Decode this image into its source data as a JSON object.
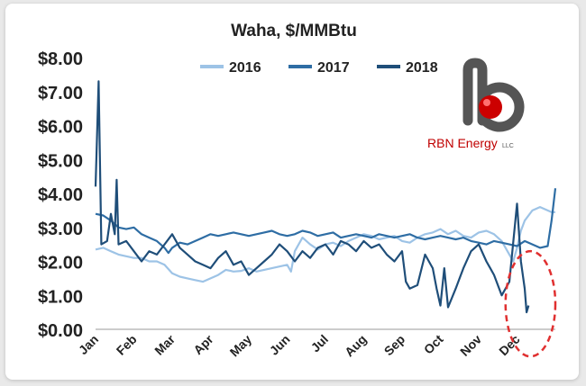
{
  "chart_data": {
    "type": "line",
    "title": "Waha, $/MMBtu",
    "xlabel": "",
    "ylabel": "",
    "ylim": [
      0,
      8
    ],
    "yticks": [
      "$0.00",
      "$1.00",
      "$2.00",
      "$3.00",
      "$4.00",
      "$5.00",
      "$6.00",
      "$7.00",
      "$8.00"
    ],
    "xticks": [
      "Jan",
      "Feb",
      "Mar",
      "Apr",
      "May",
      "Jun",
      "Jul",
      "Aug",
      "Sep",
      "Oct",
      "Nov",
      "Dec"
    ],
    "grid": false,
    "legend_position": "top",
    "series": [
      {
        "name": "2016",
        "color": "#9dc3e6",
        "points": [
          [
            0,
            2.35
          ],
          [
            0.2,
            2.4
          ],
          [
            0.4,
            2.3
          ],
          [
            0.6,
            2.2
          ],
          [
            0.8,
            2.15
          ],
          [
            1.0,
            2.1
          ],
          [
            1.2,
            2.1
          ],
          [
            1.4,
            2.0
          ],
          [
            1.6,
            2.0
          ],
          [
            1.8,
            1.9
          ],
          [
            2.0,
            1.65
          ],
          [
            2.2,
            1.55
          ],
          [
            2.4,
            1.5
          ],
          [
            2.6,
            1.45
          ],
          [
            2.8,
            1.4
          ],
          [
            3.0,
            1.5
          ],
          [
            3.2,
            1.6
          ],
          [
            3.4,
            1.75
          ],
          [
            3.6,
            1.7
          ],
          [
            3.8,
            1.72
          ],
          [
            4.0,
            1.8
          ],
          [
            4.2,
            1.7
          ],
          [
            4.4,
            1.75
          ],
          [
            4.6,
            1.8
          ],
          [
            4.8,
            1.85
          ],
          [
            5.0,
            1.9
          ],
          [
            5.1,
            1.7
          ],
          [
            5.2,
            2.3
          ],
          [
            5.4,
            2.7
          ],
          [
            5.6,
            2.5
          ],
          [
            5.8,
            2.35
          ],
          [
            6.0,
            2.5
          ],
          [
            6.2,
            2.55
          ],
          [
            6.4,
            2.45
          ],
          [
            6.6,
            2.6
          ],
          [
            6.8,
            2.7
          ],
          [
            7.0,
            2.8
          ],
          [
            7.2,
            2.75
          ],
          [
            7.4,
            2.65
          ],
          [
            7.6,
            2.7
          ],
          [
            7.8,
            2.75
          ],
          [
            8.0,
            2.6
          ],
          [
            8.2,
            2.55
          ],
          [
            8.4,
            2.7
          ],
          [
            8.6,
            2.8
          ],
          [
            8.8,
            2.85
          ],
          [
            9.0,
            2.95
          ],
          [
            9.2,
            2.8
          ],
          [
            9.4,
            2.9
          ],
          [
            9.6,
            2.75
          ],
          [
            9.8,
            2.7
          ],
          [
            10.0,
            2.85
          ],
          [
            10.2,
            2.9
          ],
          [
            10.4,
            2.8
          ],
          [
            10.6,
            2.6
          ],
          [
            10.8,
            2.2
          ],
          [
            10.9,
            2.0
          ],
          [
            11.0,
            2.4
          ],
          [
            11.1,
            2.9
          ],
          [
            11.2,
            3.2
          ],
          [
            11.4,
            3.5
          ],
          [
            11.6,
            3.6
          ],
          [
            11.8,
            3.5
          ],
          [
            11.9,
            3.45
          ],
          [
            12.0,
            3.45
          ]
        ]
      },
      {
        "name": "2017",
        "color": "#2e6da4",
        "points": [
          [
            0,
            3.4
          ],
          [
            0.2,
            3.35
          ],
          [
            0.4,
            3.2
          ],
          [
            0.6,
            3.0
          ],
          [
            0.8,
            2.95
          ],
          [
            1.0,
            3.0
          ],
          [
            1.2,
            2.8
          ],
          [
            1.4,
            2.7
          ],
          [
            1.6,
            2.6
          ],
          [
            1.8,
            2.4
          ],
          [
            1.9,
            2.25
          ],
          [
            2.0,
            2.4
          ],
          [
            2.2,
            2.55
          ],
          [
            2.4,
            2.5
          ],
          [
            2.6,
            2.6
          ],
          [
            2.8,
            2.7
          ],
          [
            3.0,
            2.8
          ],
          [
            3.2,
            2.75
          ],
          [
            3.4,
            2.8
          ],
          [
            3.6,
            2.85
          ],
          [
            3.8,
            2.8
          ],
          [
            4.0,
            2.75
          ],
          [
            4.2,
            2.8
          ],
          [
            4.4,
            2.85
          ],
          [
            4.6,
            2.9
          ],
          [
            4.8,
            2.8
          ],
          [
            5.0,
            2.75
          ],
          [
            5.2,
            2.8
          ],
          [
            5.4,
            2.9
          ],
          [
            5.6,
            2.85
          ],
          [
            5.8,
            2.75
          ],
          [
            6.0,
            2.8
          ],
          [
            6.2,
            2.85
          ],
          [
            6.4,
            2.7
          ],
          [
            6.6,
            2.75
          ],
          [
            6.8,
            2.8
          ],
          [
            7.0,
            2.75
          ],
          [
            7.2,
            2.7
          ],
          [
            7.4,
            2.8
          ],
          [
            7.6,
            2.75
          ],
          [
            7.8,
            2.7
          ],
          [
            8.0,
            2.75
          ],
          [
            8.2,
            2.8
          ],
          [
            8.4,
            2.7
          ],
          [
            8.6,
            2.65
          ],
          [
            8.8,
            2.7
          ],
          [
            9.0,
            2.75
          ],
          [
            9.2,
            2.7
          ],
          [
            9.4,
            2.65
          ],
          [
            9.6,
            2.7
          ],
          [
            9.8,
            2.6
          ],
          [
            10.0,
            2.55
          ],
          [
            10.2,
            2.5
          ],
          [
            10.4,
            2.6
          ],
          [
            10.6,
            2.55
          ],
          [
            10.8,
            2.5
          ],
          [
            11.0,
            2.45
          ],
          [
            11.2,
            2.6
          ],
          [
            11.4,
            2.5
          ],
          [
            11.6,
            2.4
          ],
          [
            11.8,
            2.45
          ],
          [
            11.9,
            3.2
          ],
          [
            12.0,
            4.15
          ]
        ]
      },
      {
        "name": "2018",
        "color": "#1f4e79",
        "points": [
          [
            0,
            4.2
          ],
          [
            0.08,
            7.3
          ],
          [
            0.15,
            2.5
          ],
          [
            0.3,
            2.6
          ],
          [
            0.4,
            3.4
          ],
          [
            0.5,
            2.8
          ],
          [
            0.55,
            4.4
          ],
          [
            0.6,
            2.5
          ],
          [
            0.8,
            2.6
          ],
          [
            1.0,
            2.3
          ],
          [
            1.2,
            2.0
          ],
          [
            1.4,
            2.3
          ],
          [
            1.6,
            2.2
          ],
          [
            1.8,
            2.5
          ],
          [
            2.0,
            2.8
          ],
          [
            2.2,
            2.4
          ],
          [
            2.4,
            2.2
          ],
          [
            2.6,
            2.0
          ],
          [
            2.8,
            1.9
          ],
          [
            3.0,
            1.8
          ],
          [
            3.2,
            2.1
          ],
          [
            3.4,
            2.3
          ],
          [
            3.6,
            1.9
          ],
          [
            3.8,
            2.0
          ],
          [
            4.0,
            1.6
          ],
          [
            4.2,
            1.8
          ],
          [
            4.4,
            2.0
          ],
          [
            4.6,
            2.2
          ],
          [
            4.8,
            2.5
          ],
          [
            5.0,
            2.3
          ],
          [
            5.2,
            2.0
          ],
          [
            5.4,
            2.3
          ],
          [
            5.6,
            2.1
          ],
          [
            5.8,
            2.4
          ],
          [
            6.0,
            2.5
          ],
          [
            6.2,
            2.2
          ],
          [
            6.4,
            2.6
          ],
          [
            6.6,
            2.5
          ],
          [
            6.8,
            2.3
          ],
          [
            7.0,
            2.6
          ],
          [
            7.2,
            2.4
          ],
          [
            7.4,
            2.5
          ],
          [
            7.6,
            2.2
          ],
          [
            7.8,
            2.0
          ],
          [
            8.0,
            2.3
          ],
          [
            8.1,
            1.4
          ],
          [
            8.2,
            1.2
          ],
          [
            8.4,
            1.3
          ],
          [
            8.6,
            2.2
          ],
          [
            8.8,
            1.8
          ],
          [
            8.9,
            1.2
          ],
          [
            9.0,
            0.7
          ],
          [
            9.1,
            1.8
          ],
          [
            9.2,
            0.65
          ],
          [
            9.4,
            1.2
          ],
          [
            9.6,
            1.8
          ],
          [
            9.8,
            2.3
          ],
          [
            10.0,
            2.5
          ],
          [
            10.2,
            2.0
          ],
          [
            10.3,
            1.8
          ],
          [
            10.4,
            1.6
          ],
          [
            10.6,
            1.0
          ],
          [
            10.8,
            1.4
          ],
          [
            11.0,
            3.7
          ],
          [
            11.1,
            2.0
          ],
          [
            11.2,
            1.2
          ],
          [
            11.25,
            0.5
          ],
          [
            11.3,
            0.7
          ]
        ]
      }
    ],
    "annotations": [
      {
        "type": "ellipse",
        "style": "dashed",
        "color": "#e03030",
        "x_range": [
          10.7,
          12.0
        ],
        "y_range": [
          -0.8,
          2.3
        ]
      }
    ]
  },
  "logo": {
    "wordmark": "RBN Energy",
    "suffix": "LLC"
  }
}
